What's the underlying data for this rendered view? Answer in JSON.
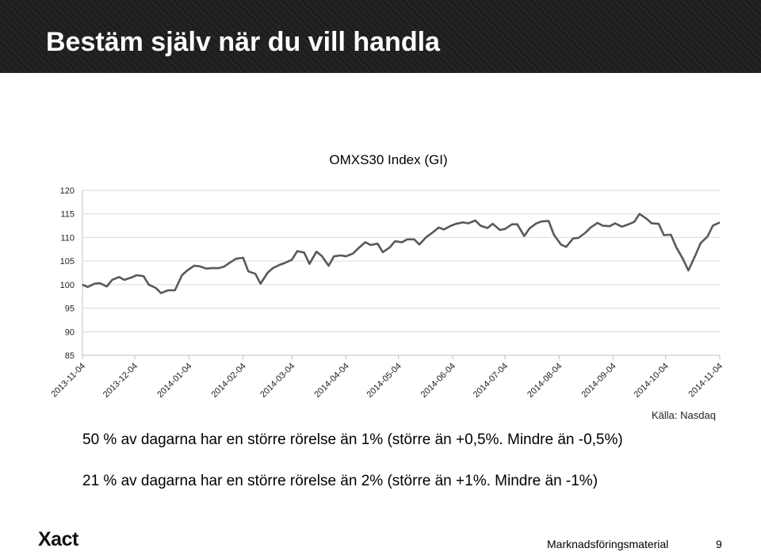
{
  "header": {
    "title": "Bestäm själv när du vill handla"
  },
  "colors": {
    "header_bg": "#1e1e1e",
    "series_line": "#595959",
    "grid": "#d9d9d9"
  },
  "chart_data": {
    "type": "line",
    "title": "OMXS30 Index (GI)",
    "xlabel": "",
    "ylabel": "",
    "ylim": [
      85,
      120
    ],
    "yticks": [
      85,
      90,
      95,
      100,
      105,
      110,
      115,
      120
    ],
    "xlim": [
      "2013-11-04",
      "2014-11-04"
    ],
    "xticks": [
      "2013-11-04",
      "2013-12-04",
      "2014-01-04",
      "2014-02-04",
      "2014-03-04",
      "2014-04-04",
      "2014-05-04",
      "2014-06-04",
      "2014-07-04",
      "2014-08-04",
      "2014-09-04",
      "2014-10-04",
      "2014-11-04"
    ],
    "grid": true,
    "legend": "none",
    "series": [
      {
        "x": [
          "2013-11-04",
          "2013-11-07",
          "2013-11-11",
          "2013-11-14",
          "2013-11-18",
          "2013-11-21",
          "2013-11-25",
          "2013-11-28",
          "2013-12-02",
          "2013-12-05",
          "2013-12-09",
          "2013-12-12",
          "2013-12-16",
          "2013-12-19",
          "2013-12-23",
          "2013-12-27",
          "2013-12-31",
          "2014-01-03",
          "2014-01-07",
          "2014-01-10",
          "2014-01-14",
          "2014-01-17",
          "2014-01-21",
          "2014-01-24",
          "2014-01-28",
          "2014-01-31",
          "2014-02-04",
          "2014-02-07",
          "2014-02-11",
          "2014-02-14",
          "2014-02-18",
          "2014-02-21",
          "2014-02-25",
          "2014-02-28",
          "2014-03-04",
          "2014-03-07",
          "2014-03-11",
          "2014-03-14",
          "2014-03-18",
          "2014-03-21",
          "2014-03-25",
          "2014-03-28",
          "2014-04-01",
          "2014-04-04",
          "2014-04-08",
          "2014-04-11",
          "2014-04-15",
          "2014-04-18",
          "2014-04-22",
          "2014-04-25",
          "2014-04-29",
          "2014-05-02",
          "2014-05-06",
          "2014-05-09",
          "2014-05-13",
          "2014-05-16",
          "2014-05-20",
          "2014-05-23",
          "2014-05-27",
          "2014-05-30",
          "2014-06-03",
          "2014-06-06",
          "2014-06-10",
          "2014-06-13",
          "2014-06-17",
          "2014-06-20",
          "2014-06-24",
          "2014-06-27",
          "2014-07-01",
          "2014-07-04",
          "2014-07-08",
          "2014-07-11",
          "2014-07-15",
          "2014-07-18",
          "2014-07-22",
          "2014-07-25",
          "2014-07-29",
          "2014-08-01",
          "2014-08-05",
          "2014-08-08",
          "2014-08-12",
          "2014-08-15",
          "2014-08-19",
          "2014-08-22",
          "2014-08-26",
          "2014-08-29",
          "2014-09-02",
          "2014-09-05",
          "2014-09-09",
          "2014-09-12",
          "2014-09-16",
          "2014-09-19",
          "2014-09-23",
          "2014-09-26",
          "2014-09-30",
          "2014-10-03",
          "2014-10-07",
          "2014-10-10",
          "2014-10-14",
          "2014-10-17",
          "2014-10-21",
          "2014-10-24",
          "2014-10-28",
          "2014-10-31",
          "2014-11-04"
        ],
        "values": [
          100.0,
          99.5,
          100.2,
          100.3,
          99.6,
          101.0,
          101.6,
          101.0,
          101.5,
          102.0,
          101.8,
          100.0,
          99.3,
          98.2,
          98.8,
          98.8,
          102.0,
          103.0,
          104.0,
          103.9,
          103.4,
          103.5,
          103.5,
          103.8,
          104.8,
          105.5,
          105.7,
          102.8,
          102.3,
          100.2,
          102.5,
          103.5,
          104.2,
          104.6,
          105.3,
          107.1,
          106.8,
          104.4,
          107.0,
          106.1,
          104.0,
          106.0,
          106.2,
          106.0,
          106.6,
          107.7,
          109.0,
          108.4,
          108.7,
          106.9,
          107.9,
          109.2,
          109.0,
          109.6,
          109.6,
          108.5,
          110.1,
          110.9,
          112.1,
          111.7,
          112.5,
          112.9,
          113.2,
          113.0,
          113.6,
          112.5,
          112.0,
          112.9,
          111.6,
          111.8,
          112.8,
          112.8,
          110.3,
          111.9,
          113.0,
          113.4,
          113.5,
          110.6,
          108.5,
          108.0,
          109.8,
          109.9,
          111.0,
          112.1,
          113.1,
          112.5,
          112.4,
          113.0,
          112.3,
          112.7,
          113.3,
          115.0,
          114.0,
          113.0,
          112.9,
          110.5,
          110.6,
          108.0,
          105.4,
          103.0,
          106.2,
          108.8,
          110.2,
          112.5,
          113.2
        ]
      }
    ]
  },
  "source": "Källa: Nasdaq",
  "body_text": {
    "line1": "50 % av dagarna har en större rörelse än 1% (större än +0,5%. Mindre än -0,5%)",
    "line2": "21 % av dagarna har en större rörelse än 2% (större än +1%. Mindre än -1%)"
  },
  "footer": {
    "logo": "Xact",
    "label": "Marknadsföringsmaterial",
    "page_number": "9"
  }
}
